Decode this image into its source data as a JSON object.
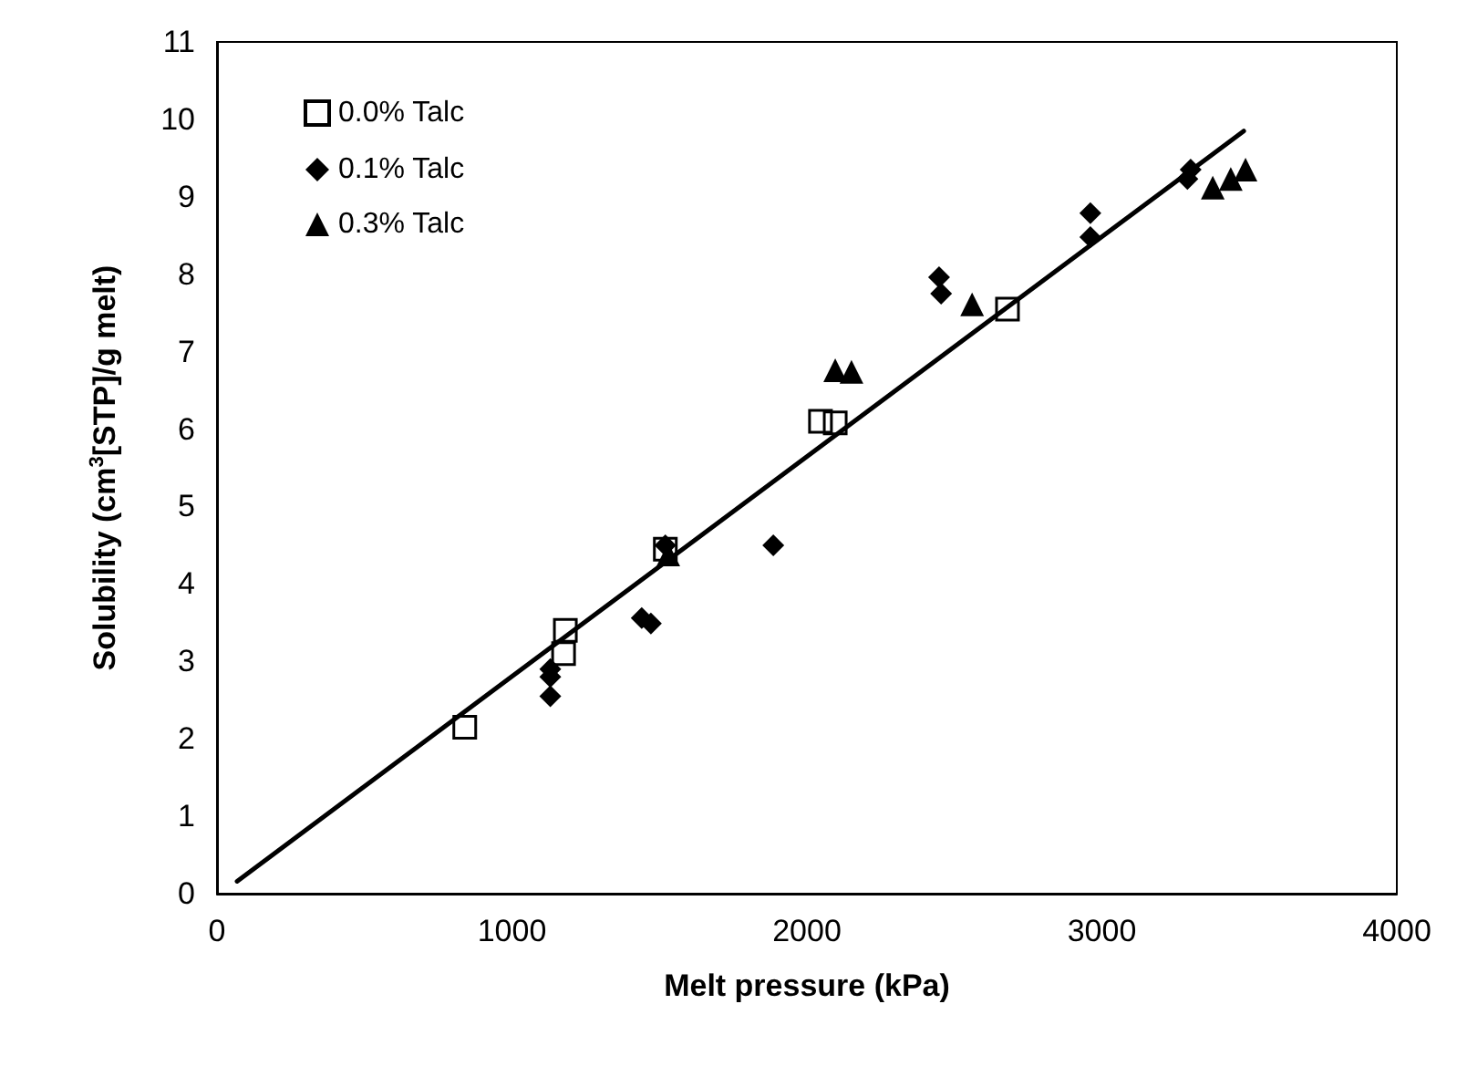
{
  "chart_data": {
    "type": "scatter",
    "xlabel": "Melt pressure (kPa)",
    "ylabel": "Solubility (cm$^{3}$[STP]/g melt)",
    "xlim": [
      0,
      4000
    ],
    "xticks": [
      0,
      1000,
      2000,
      3000,
      4000
    ],
    "ylim": [
      0,
      11
    ],
    "yticks": [
      0,
      1,
      2,
      3,
      4,
      5,
      6,
      7,
      8,
      9,
      10,
      11
    ],
    "grid": false,
    "legend": "top left",
    "series": [
      {
        "name": "0.0% Talc",
        "color": "#000000",
        "marker": "square",
        "x": [
          840,
          1175,
          1181,
          1520,
          2046,
          2096,
          2680
        ],
        "values": [
          2.15,
          3.1,
          3.4,
          4.45,
          6.1,
          6.08,
          7.55
        ]
      },
      {
        "name": "0.1% Talc",
        "color": "#000000",
        "marker": "diamond",
        "x": [
          1130,
          1130,
          1130,
          1440,
          1471,
          1520,
          1886,
          2448,
          2455,
          2961,
          2961,
          3290,
          3301
        ],
        "values": [
          2.55,
          2.8,
          2.9,
          3.56,
          3.49,
          4.5,
          4.5,
          7.96,
          7.75,
          8.79,
          8.48,
          9.23,
          9.35
        ]
      },
      {
        "name": "0.3% Talc",
        "color": "#000000",
        "marker": "triangle",
        "x": [
          1530,
          2096,
          2151,
          2560,
          3376,
          3437,
          3487
        ],
        "values": [
          4.38,
          6.76,
          6.74,
          7.61,
          9.12,
          9.23,
          9.35
        ]
      },
      {
        "type": "line",
        "color": "#000000",
        "marker": "none",
        "line_style": "solid",
        "x": [
          68,
          3481
        ],
        "values": [
          0.16,
          9.85
        ]
      }
    ]
  }
}
